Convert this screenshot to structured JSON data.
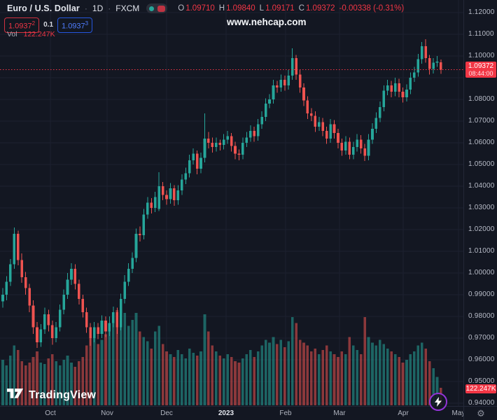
{
  "header": {
    "symbol_title": "Euro / U.S. Dollar",
    "sep": "·",
    "interval": "1D",
    "exchange": "FXCM",
    "ohlc": {
      "o_label": "O",
      "o": "1.09710",
      "h_label": "H",
      "h": "1.09840",
      "l_label": "L",
      "l": "1.09171",
      "c_label": "C",
      "c": "1.09372",
      "change": "-0.00338 (-0.31%)"
    },
    "quote": {
      "bid": "1.0937",
      "bid_sup": "2",
      "spread": "0.1",
      "ask": "1.0937",
      "ask_sup": "3"
    },
    "vol_label": "Vol",
    "vol_value": "122.247K"
  },
  "watermark": "www.nehcap.com",
  "logo": {
    "text": "TradingView"
  },
  "price_label": {
    "price": "1.09372",
    "countdown": "08:44:00"
  },
  "volume_label": "122.247K",
  "colors": {
    "background": "#131722",
    "grid": "#1c2130",
    "up": "#26a69a",
    "down": "#ef5350",
    "accent_red": "#f23645",
    "accent_blue": "#2962ff",
    "axis_text": "#b8bcc8"
  },
  "price_axis": {
    "ticks": [
      {
        "label": "1.12000",
        "price": 1.12
      },
      {
        "label": "1.11000",
        "price": 1.11
      },
      {
        "label": "1.10000",
        "price": 1.1
      },
      {
        "label": "1.08000",
        "price": 1.08
      },
      {
        "label": "1.07000",
        "price": 1.07
      },
      {
        "label": "1.06000",
        "price": 1.06
      },
      {
        "label": "1.05000",
        "price": 1.05
      },
      {
        "label": "1.04000",
        "price": 1.04
      },
      {
        "label": "1.03000",
        "price": 1.03
      },
      {
        "label": "1.02000",
        "price": 1.02
      },
      {
        "label": "1.01000",
        "price": 1.01
      },
      {
        "label": "1.00000",
        "price": 1.0
      },
      {
        "label": "0.99000",
        "price": 0.99
      },
      {
        "label": "0.98000",
        "price": 0.98
      },
      {
        "label": "0.97000",
        "price": 0.97
      },
      {
        "label": "0.96000",
        "price": 0.96
      },
      {
        "label": "0.95000",
        "price": 0.95
      },
      {
        "label": "0.94000",
        "price": 0.94
      }
    ]
  },
  "time_axis": {
    "ticks": [
      {
        "label": "Oct",
        "x": 72,
        "year": false
      },
      {
        "label": "Nov",
        "x": 153,
        "year": false
      },
      {
        "label": "Dec",
        "x": 238,
        "year": false
      },
      {
        "label": "2023",
        "x": 323,
        "year": true
      },
      {
        "label": "Feb",
        "x": 408,
        "year": false
      },
      {
        "label": "Mar",
        "x": 485,
        "year": false
      },
      {
        "label": "Apr",
        "x": 576,
        "year": false
      },
      {
        "label": "May",
        "x": 655,
        "year": false
      }
    ]
  },
  "chart_data": {
    "type": "candlestick",
    "title": "Euro / U.S. Dollar",
    "symbol": "EURUSD",
    "exchange": "FXCM",
    "interval": "1D",
    "ylim": [
      0.94,
      1.12
    ],
    "price_step": 0.01,
    "current_price": 1.09372,
    "countdown": "08:44:00",
    "last_bar": {
      "open": 1.0971,
      "high": 1.0984,
      "low": 1.09171,
      "close": 1.09372,
      "change": -0.00338,
      "change_pct": -0.31,
      "volume_k": 122.247
    },
    "columns": [
      "open",
      "high",
      "low",
      "close",
      "volume_k"
    ],
    "candles": [
      [
        0.987,
        0.993,
        0.984,
        0.99,
        320
      ],
      [
        0.99,
        0.9985,
        0.9875,
        0.996,
        280
      ],
      [
        0.996,
        1.0065,
        0.994,
        1.004,
        350
      ],
      [
        1.004,
        1.021,
        1.002,
        1.018,
        420
      ],
      [
        1.018,
        1.0195,
        1.0035,
        1.006,
        390
      ],
      [
        1.006,
        1.009,
        0.9955,
        0.998,
        310
      ],
      [
        0.998,
        1.0005,
        0.99,
        0.993,
        280
      ],
      [
        0.993,
        0.995,
        0.982,
        0.985,
        300
      ],
      [
        0.985,
        0.9875,
        0.972,
        0.975,
        340
      ],
      [
        0.975,
        0.9775,
        0.9655,
        0.968,
        380
      ],
      [
        0.968,
        0.9765,
        0.966,
        0.974,
        300
      ],
      [
        0.974,
        0.984,
        0.972,
        0.981,
        290
      ],
      [
        0.981,
        0.983,
        0.973,
        0.976,
        330
      ],
      [
        0.976,
        0.978,
        0.967,
        0.97,
        360
      ],
      [
        0.97,
        0.9775,
        0.968,
        0.975,
        310
      ],
      [
        0.975,
        0.9855,
        0.973,
        0.983,
        280
      ],
      [
        0.983,
        0.9925,
        0.981,
        0.99,
        320
      ],
      [
        0.99,
        1.0,
        0.988,
        0.997,
        350
      ],
      [
        0.997,
        1.0045,
        0.9945,
        1.002,
        300
      ],
      [
        1.002,
        1.004,
        0.9925,
        0.995,
        270
      ],
      [
        0.995,
        0.997,
        0.9855,
        0.988,
        310
      ],
      [
        0.988,
        0.99,
        0.9795,
        0.982,
        340
      ],
      [
        0.982,
        0.984,
        0.9725,
        0.975,
        420
      ],
      [
        0.975,
        0.977,
        0.9665,
        0.97,
        540
      ],
      [
        0.97,
        0.9775,
        0.968,
        0.975,
        480
      ],
      [
        0.975,
        0.977,
        0.9695,
        0.972,
        430
      ],
      [
        0.972,
        0.9805,
        0.97,
        0.978,
        460
      ],
      [
        0.978,
        0.98,
        0.9705,
        0.973,
        500
      ],
      [
        0.973,
        0.98,
        0.971,
        0.977,
        560
      ],
      [
        0.977,
        0.9845,
        0.975,
        0.982,
        620
      ],
      [
        0.982,
        0.984,
        0.972,
        0.975,
        670
      ],
      [
        0.975,
        0.9905,
        0.9735,
        0.988,
        680
      ],
      [
        0.988,
        0.999,
        0.986,
        0.996,
        650
      ],
      [
        0.996,
        1.0045,
        0.994,
        1.002,
        560
      ],
      [
        1.002,
        1.0095,
        1.0,
        1.007,
        600
      ],
      [
        1.007,
        1.0205,
        1.005,
        1.018,
        650
      ],
      [
        1.018,
        1.0215,
        1.0145,
        1.0175,
        520
      ],
      [
        1.0175,
        1.0295,
        1.0155,
        1.027,
        480
      ],
      [
        1.027,
        1.035,
        1.025,
        1.0325,
        450
      ],
      [
        1.0325,
        1.0345,
        1.0275,
        1.03,
        400
      ],
      [
        1.03,
        1.0375,
        1.028,
        1.035,
        520
      ],
      [
        1.0295,
        1.0465,
        1.0285,
        1.04,
        560
      ],
      [
        1.04,
        1.042,
        1.0335,
        1.036,
        430
      ],
      [
        1.036,
        1.038,
        1.0315,
        1.034,
        380
      ],
      [
        1.034,
        1.0415,
        1.032,
        1.039,
        360
      ],
      [
        1.039,
        1.0405,
        1.031,
        1.0335,
        340
      ],
      [
        1.0335,
        1.0405,
        1.0315,
        1.038,
        390
      ],
      [
        1.038,
        1.0455,
        1.036,
        1.043,
        360
      ],
      [
        1.043,
        1.0485,
        1.041,
        1.046,
        330
      ],
      [
        1.046,
        1.0545,
        1.044,
        1.052,
        400
      ],
      [
        1.052,
        1.0575,
        1.05,
        1.055,
        370
      ],
      [
        1.055,
        1.0565,
        1.0455,
        1.048,
        350
      ],
      [
        1.048,
        1.0555,
        1.046,
        1.053,
        380
      ],
      [
        1.053,
        1.0735,
        1.051,
        1.062,
        640
      ],
      [
        1.062,
        1.065,
        1.0575,
        1.06,
        520
      ],
      [
        1.06,
        1.0625,
        1.0555,
        1.058,
        420
      ],
      [
        1.058,
        1.0625,
        1.056,
        1.06,
        380
      ],
      [
        1.06,
        1.0615,
        1.0565,
        1.059,
        350
      ],
      [
        1.059,
        1.064,
        1.057,
        1.0615,
        330
      ],
      [
        1.0615,
        1.0655,
        1.0595,
        1.063,
        360
      ],
      [
        1.063,
        1.0645,
        1.056,
        1.0585,
        340
      ],
      [
        1.0585,
        1.0605,
        1.0525,
        1.055,
        310
      ],
      [
        1.055,
        1.057,
        1.052,
        1.0545,
        300
      ],
      [
        1.0545,
        1.0625,
        1.0525,
        1.06,
        330
      ],
      [
        1.06,
        1.065,
        1.058,
        1.0625,
        360
      ],
      [
        1.0625,
        1.068,
        1.0605,
        1.0655,
        390
      ],
      [
        1.0655,
        1.0675,
        1.0605,
        1.063,
        340
      ],
      [
        1.063,
        1.071,
        1.061,
        1.0685,
        380
      ],
      [
        1.0685,
        1.0745,
        1.0665,
        1.072,
        420
      ],
      [
        1.072,
        1.0805,
        1.07,
        1.078,
        460
      ],
      [
        1.078,
        1.0825,
        1.076,
        1.08,
        440
      ],
      [
        1.08,
        1.089,
        1.078,
        1.0865,
        480
      ],
      [
        1.0865,
        1.0885,
        1.083,
        1.0855,
        430
      ],
      [
        1.0855,
        1.0915,
        1.0835,
        1.089,
        460
      ],
      [
        1.089,
        1.091,
        1.084,
        1.0865,
        410
      ],
      [
        1.0865,
        1.0935,
        1.0845,
        1.091,
        450
      ],
      [
        1.091,
        1.1035,
        1.089,
        1.099,
        620
      ],
      [
        1.099,
        1.1005,
        1.089,
        1.0915,
        580
      ],
      [
        1.0915,
        1.0935,
        1.083,
        1.0855,
        460
      ],
      [
        1.0855,
        1.0875,
        1.077,
        1.0795,
        440
      ],
      [
        1.0795,
        1.0815,
        1.071,
        1.0735,
        420
      ],
      [
        1.0735,
        1.076,
        1.07,
        1.0725,
        380
      ],
      [
        1.0725,
        1.0745,
        1.065,
        1.0675,
        400
      ],
      [
        1.0675,
        1.072,
        1.0655,
        1.0695,
        360
      ],
      [
        1.0695,
        1.0715,
        1.063,
        1.0655,
        390
      ],
      [
        1.0655,
        1.0675,
        1.0595,
        1.062,
        420
      ],
      [
        1.062,
        1.071,
        1.06,
        1.0685,
        380
      ],
      [
        1.0685,
        1.0705,
        1.062,
        1.0645,
        360
      ],
      [
        1.0645,
        1.0665,
        1.0575,
        1.06,
        340
      ],
      [
        1.06,
        1.062,
        1.054,
        1.0565,
        380
      ],
      [
        1.0565,
        1.063,
        1.0545,
        1.0605,
        360
      ],
      [
        1.0605,
        1.0625,
        1.0525,
        1.0545,
        480
      ],
      [
        1.0545,
        1.0605,
        1.0525,
        1.058,
        420
      ],
      [
        1.058,
        1.064,
        1.056,
        1.0615,
        390
      ],
      [
        1.0615,
        1.0635,
        1.055,
        1.0575,
        360
      ],
      [
        1.0575,
        1.0595,
        1.0516,
        1.054,
        620
      ],
      [
        1.054,
        1.064,
        1.052,
        1.0615,
        480
      ],
      [
        1.0615,
        1.069,
        1.0595,
        1.0665,
        440
      ],
      [
        1.0665,
        1.074,
        1.0645,
        1.0715,
        420
      ],
      [
        1.0715,
        1.079,
        1.0695,
        1.0765,
        460
      ],
      [
        1.0765,
        1.0865,
        1.0745,
        1.084,
        430
      ],
      [
        1.084,
        1.089,
        1.082,
        1.0865,
        400
      ],
      [
        1.0865,
        1.0885,
        1.081,
        1.0835,
        380
      ],
      [
        1.0835,
        1.09,
        1.0815,
        1.0875,
        360
      ],
      [
        1.0875,
        1.0895,
        1.081,
        1.0835,
        340
      ],
      [
        1.0835,
        1.0855,
        1.0785,
        1.081,
        300
      ],
      [
        1.081,
        1.087,
        1.079,
        1.0845,
        320
      ],
      [
        1.0845,
        1.0925,
        1.0825,
        1.09,
        360
      ],
      [
        1.09,
        1.095,
        1.088,
        1.0925,
        380
      ],
      [
        1.0925,
        1.101,
        1.0905,
        1.0985,
        420
      ],
      [
        1.0985,
        1.1065,
        1.0965,
        1.1045,
        440
      ],
      [
        1.1045,
        1.1078,
        1.097,
        1.099,
        400
      ],
      [
        1.099,
        1.1005,
        1.0915,
        1.094,
        310
      ],
      [
        1.094,
        1.099,
        1.092,
        1.097,
        260
      ],
      [
        1.097,
        1.1,
        1.095,
        1.0975,
        200
      ],
      [
        1.0971,
        1.0984,
        1.09171,
        1.09372,
        122.247
      ]
    ]
  }
}
